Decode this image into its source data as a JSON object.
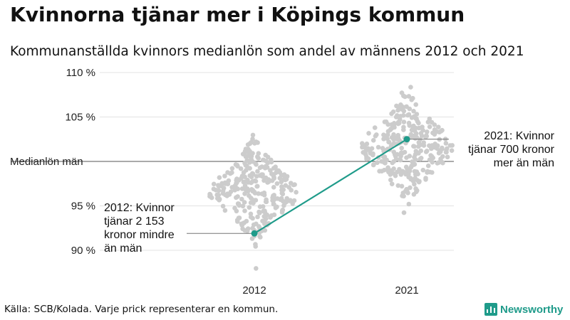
{
  "header": {
    "title": "Kvinnorna tjänar mer i Köpings kommun",
    "subtitle": "Kommunanställda kvinnors medianlön som andel av männens 2012 och 2021"
  },
  "chart_data": {
    "type": "scatter",
    "subtype": "beeswarm",
    "title": "Kvinnorna tjänar mer i Köpings kommun",
    "subtitle": "Kommunanställda kvinnors medianlön som andel av männens 2012 och 2021",
    "categories": [
      "2012",
      "2021"
    ],
    "ylim": [
      86,
      112
    ],
    "yticks": [
      {
        "value": 110,
        "label": "110 %"
      },
      {
        "value": 105,
        "label": "105 %"
      },
      {
        "value": 100,
        "label": "Medianlön män"
      },
      {
        "value": 95,
        "label": "95 %"
      },
      {
        "value": 90,
        "label": "90 %"
      }
    ],
    "reference_line": {
      "value": 100,
      "label": "Medianlön män"
    },
    "swarm_note": "Varje prick representerar en kommun.",
    "swarm_color": "#cccccc",
    "highlight": {
      "name": "Köping",
      "color": "#1f9b8a",
      "points": [
        {
          "category": "2012",
          "value": 91.9
        },
        {
          "category": "2021",
          "value": 102.5
        }
      ]
    },
    "annotations": [
      {
        "category": "2012",
        "text": "2012: Kvinnor\ntjänar 2 153\nkronor mindre\nän män"
      },
      {
        "category": "2021",
        "text": "2021: Kvinnor\ntjänar 700 kronor\nmer än män"
      }
    ]
  },
  "footer": {
    "source": "Källa: SCB/Kolada. Varje prick representerar en kommun.",
    "brand": "Newsworthy",
    "brand_color": "#1f9b8a"
  }
}
